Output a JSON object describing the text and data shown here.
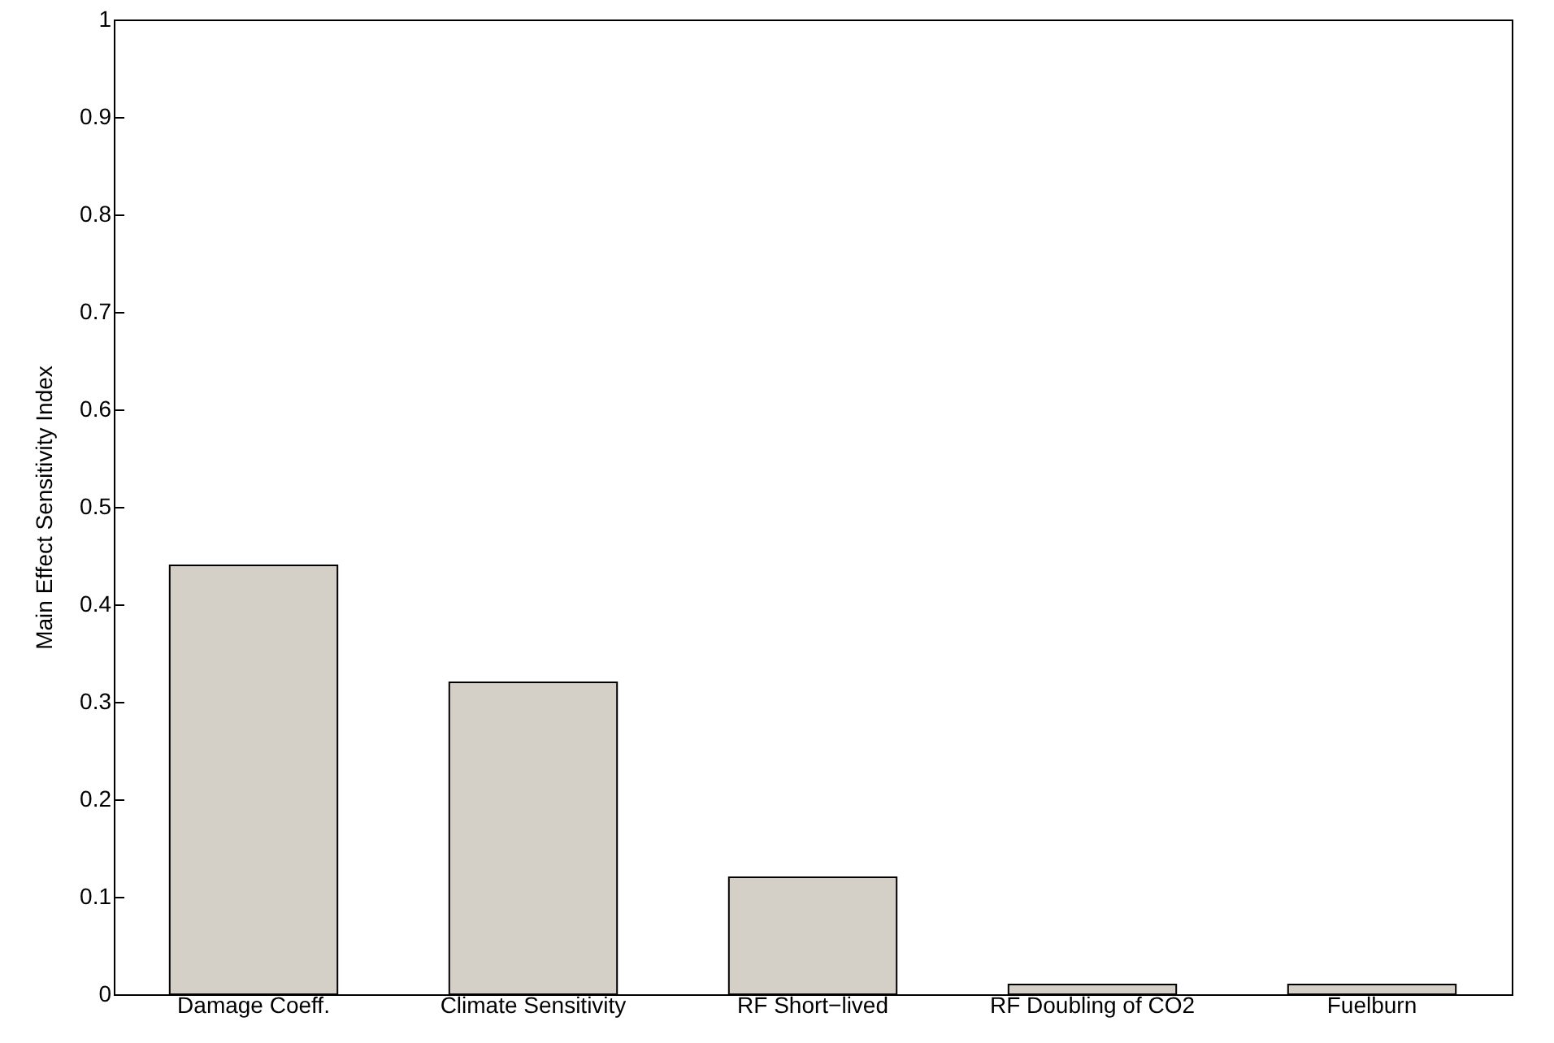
{
  "chart_data": {
    "type": "bar",
    "ylabel": "Main Effect Sensitivity Index",
    "categories": [
      "Damage Coeff.",
      "Climate Sensitivity",
      "RF Short−lived",
      "RF Doubling of CO2",
      "Fuelburn"
    ],
    "values": [
      0.44,
      0.32,
      0.12,
      0.01,
      0.01
    ],
    "color": "#d4d0c8",
    "ylim": [
      0,
      1
    ],
    "yticks": [
      0,
      0.1,
      0.2,
      0.3,
      0.4,
      0.5,
      0.6,
      0.7,
      0.8,
      0.9,
      1
    ],
    "grid": false
  }
}
